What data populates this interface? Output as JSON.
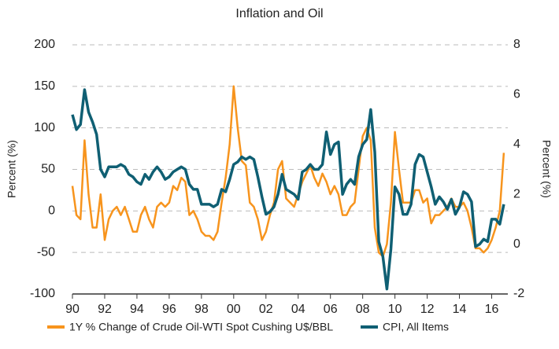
{
  "chart_data": {
    "type": "line",
    "title": "Inflation and Oil",
    "ylabel": "Percent (%)",
    "y2label": "Percent (%)",
    "x": [
      1990,
      1990.25,
      1990.5,
      1990.75,
      1991,
      1991.25,
      1991.5,
      1991.75,
      1992,
      1992.25,
      1992.5,
      1992.75,
      1993,
      1993.25,
      1993.5,
      1993.75,
      1994,
      1994.25,
      1994.5,
      1994.75,
      1995,
      1995.25,
      1995.5,
      1995.75,
      1996,
      1996.25,
      1996.5,
      1996.75,
      1997,
      1997.25,
      1997.5,
      1997.75,
      1998,
      1998.25,
      1998.5,
      1998.75,
      1999,
      1999.25,
      1999.5,
      1999.75,
      2000,
      2000.25,
      2000.5,
      2000.75,
      2001,
      2001.25,
      2001.5,
      2001.75,
      2002,
      2002.25,
      2002.5,
      2002.75,
      2003,
      2003.25,
      2003.5,
      2003.75,
      2004,
      2004.25,
      2004.5,
      2004.75,
      2005,
      2005.25,
      2005.5,
      2005.75,
      2006,
      2006.25,
      2006.5,
      2006.75,
      2007,
      2007.25,
      2007.5,
      2007.75,
      2008,
      2008.25,
      2008.5,
      2008.75,
      2009,
      2009.25,
      2009.5,
      2009.75,
      2010,
      2010.25,
      2010.5,
      2010.75,
      2011,
      2011.25,
      2011.5,
      2011.75,
      2012,
      2012.25,
      2012.5,
      2012.75,
      2013,
      2013.25,
      2013.5,
      2013.75,
      2014,
      2014.25,
      2014.5,
      2014.75,
      2015,
      2015.25,
      2015.5,
      2015.75,
      2016,
      2016.25,
      2016.5,
      2016.75
    ],
    "series": [
      {
        "name": "1Y % Change of Crude Oil-WTI Spot Cushing U$/BBL",
        "color": "#f7941d",
        "axis": "y",
        "values": [
          30,
          -5,
          -10,
          85,
          20,
          -20,
          -20,
          20,
          -35,
          -10,
          0,
          5,
          -5,
          5,
          -10,
          -25,
          -25,
          -5,
          5,
          -10,
          -20,
          5,
          10,
          5,
          10,
          30,
          25,
          40,
          35,
          -5,
          0,
          -10,
          -25,
          -30,
          -30,
          -35,
          -25,
          10,
          40,
          80,
          150,
          100,
          60,
          55,
          10,
          5,
          -10,
          -35,
          -25,
          -5,
          10,
          50,
          60,
          15,
          10,
          5,
          20,
          35,
          45,
          55,
          40,
          30,
          45,
          35,
          20,
          30,
          20,
          -5,
          -5,
          5,
          10,
          50,
          90,
          100,
          85,
          -20,
          -50,
          -55,
          -40,
          10,
          95,
          50,
          10,
          10,
          10,
          25,
          25,
          10,
          15,
          -15,
          -5,
          -5,
          0,
          5,
          15,
          5,
          5,
          10,
          0,
          -20,
          -45,
          -45,
          -50,
          -45,
          -35,
          -20,
          0,
          70
        ]
      },
      {
        "name": "CPI, All Items",
        "color": "#0f5f73",
        "axis": "y2",
        "values": [
          5.2,
          4.6,
          4.8,
          6.2,
          5.3,
          4.9,
          4.4,
          3.0,
          2.7,
          3.1,
          3.1,
          3.1,
          3.2,
          3.1,
          2.8,
          2.7,
          2.5,
          2.4,
          2.8,
          2.6,
          2.9,
          3.1,
          2.9,
          2.6,
          2.7,
          2.9,
          3.0,
          3.1,
          3.0,
          2.4,
          2.2,
          2.2,
          1.6,
          1.6,
          1.6,
          1.5,
          1.6,
          2.2,
          2.1,
          2.6,
          3.2,
          3.3,
          3.5,
          3.4,
          3.5,
          3.4,
          2.7,
          1.9,
          1.2,
          1.3,
          1.5,
          2.0,
          2.8,
          2.2,
          2.1,
          2.0,
          1.8,
          2.9,
          3.0,
          3.2,
          3.0,
          3.0,
          3.2,
          4.5,
          3.6,
          4.0,
          4.1,
          2.0,
          2.4,
          2.6,
          2.4,
          3.5,
          4.0,
          4.2,
          5.4,
          3.7,
          0.1,
          -0.5,
          -1.8,
          -0.2,
          2.3,
          2.0,
          1.2,
          1.2,
          1.6,
          3.2,
          3.6,
          3.5,
          2.9,
          2.3,
          1.6,
          1.9,
          1.7,
          1.4,
          1.8,
          1.2,
          1.5,
          2.1,
          2.0,
          1.7,
          -0.1,
          0.0,
          0.2,
          0.1,
          1.0,
          1.0,
          0.8,
          1.6
        ]
      }
    ],
    "xlim": [
      1990,
      2017
    ],
    "xticks": [
      {
        "value": 1990,
        "label": "90"
      },
      {
        "value": 1992,
        "label": "92"
      },
      {
        "value": 1994,
        "label": "94"
      },
      {
        "value": 1996,
        "label": "96"
      },
      {
        "value": 1998,
        "label": "98"
      },
      {
        "value": 2000,
        "label": "00"
      },
      {
        "value": 2002,
        "label": "02"
      },
      {
        "value": 2004,
        "label": "04"
      },
      {
        "value": 2006,
        "label": "06"
      },
      {
        "value": 2008,
        "label": "08"
      },
      {
        "value": 2010,
        "label": "10"
      },
      {
        "value": 2012,
        "label": "12"
      },
      {
        "value": 2014,
        "label": "14"
      },
      {
        "value": 2016,
        "label": "16"
      }
    ],
    "ylim": [
      -100,
      200
    ],
    "yticks": [
      -100,
      -50,
      0,
      50,
      100,
      150,
      200
    ],
    "y2lim": [
      -2,
      8
    ],
    "y2ticks": [
      -2,
      0,
      2,
      4,
      6,
      8
    ],
    "grid": true,
    "legend": "bottom"
  }
}
